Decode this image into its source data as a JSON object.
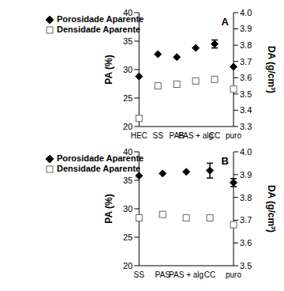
{
  "chart_data": [
    {
      "type": "scatter",
      "title": "A",
      "categories": [
        "HEC",
        "SS",
        "PAS",
        "PAS + alg",
        "CC",
        "puro"
      ],
      "y_label": "PA (%)",
      "y2_label": "DA (g/cm³)",
      "ylim": [
        20,
        40
      ],
      "yticks": [
        20,
        25,
        30,
        35,
        40
      ],
      "y2lim": [
        3.3,
        4.0
      ],
      "y2ticks": [
        3.3,
        3.4,
        3.5,
        3.6,
        3.7,
        3.8,
        3.9,
        {
          "value": 4,
          "label": "4.0"
        }
      ],
      "legend": "upper left",
      "series": [
        {
          "name": "Porosidade Aparente",
          "color": "#000000",
          "marker": "diamond",
          "values": [
            28.8,
            32.7,
            32.2,
            33.8,
            34.5,
            30.5
          ],
          "errors": [
            null,
            null,
            null,
            null,
            0.7,
            null
          ]
        },
        {
          "name": "Densidade Aparente",
          "color": "#666666",
          "marker": "open_square",
          "axis": "y2",
          "values": [
            3.35,
            3.55,
            3.56,
            3.58,
            3.59,
            3.53
          ],
          "errors": [
            0.015,
            null,
            null,
            null,
            null,
            null
          ]
        }
      ]
    },
    {
      "type": "scatter",
      "title": "B",
      "categories": [
        "SS",
        "PAS",
        "PAS + alg",
        "CC",
        "puro"
      ],
      "y_label": "PA (%)",
      "y2_label": "DA (g/cm³)",
      "ylim": [
        20,
        40
      ],
      "yticks": [
        20,
        25,
        30,
        35,
        40
      ],
      "y2lim": [
        3.5,
        4.0
      ],
      "y2ticks": [
        3.5,
        3.6,
        3.7,
        3.8,
        3.9,
        {
          "value": 4,
          "label": "4.0"
        }
      ],
      "legend": "upper left",
      "series": [
        {
          "name": "Porosidade Aparente",
          "color": "#000000",
          "marker": "diamond",
          "values": [
            35.8,
            36.2,
            36.5,
            36.7,
            34.6
          ],
          "errors": [
            null,
            null,
            null,
            1.3,
            0.7
          ]
        },
        {
          "name": "Densidade Aparente",
          "color": "#666666",
          "marker": "open_square",
          "axis": "y2",
          "values": [
            3.71,
            3.725,
            3.71,
            3.71,
            3.68
          ],
          "errors": [
            null,
            null,
            null,
            null,
            null
          ]
        }
      ]
    }
  ]
}
